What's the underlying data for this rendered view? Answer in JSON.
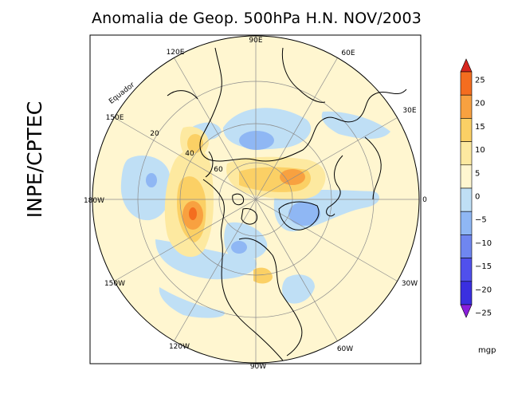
{
  "header": {
    "title": "Anomalia de Geop. 500hPa H.N. NOV/2003"
  },
  "side": {
    "label": "INPE/CPTEC"
  },
  "map": {
    "projection": "polar-stereographic-north",
    "longitude_labels": {
      "lon_90E": "90E",
      "lon_60E": "60E",
      "lon_30E": "30E",
      "lon_0": "0",
      "lon_30W": "30W",
      "lon_60W": "60W",
      "lon_90W": "90W",
      "lon_120W": "120W",
      "lon_150W": "150W",
      "lon_180W": "180W",
      "lon_150E": "150E",
      "lon_120E": "120E"
    },
    "latitude_labels": {
      "lat_20": "20",
      "lat_40": "40",
      "lat_60": "60"
    },
    "equator_label": "Equador"
  },
  "colorbar": {
    "unit": "mgp",
    "ticks": [
      "25",
      "20",
      "15",
      "10",
      "5",
      "0",
      "−5",
      "−10",
      "−15",
      "−20",
      "−25"
    ],
    "colors": [
      "#d7261e",
      "#f46d1f",
      "#f8a140",
      "#fbd065",
      "#fde9a0",
      "#fff6d0",
      "#bfdff5",
      "#8fb7f4",
      "#6f86f0",
      "#5050ec",
      "#3a2fe0",
      "#8a1fdc"
    ]
  }
}
